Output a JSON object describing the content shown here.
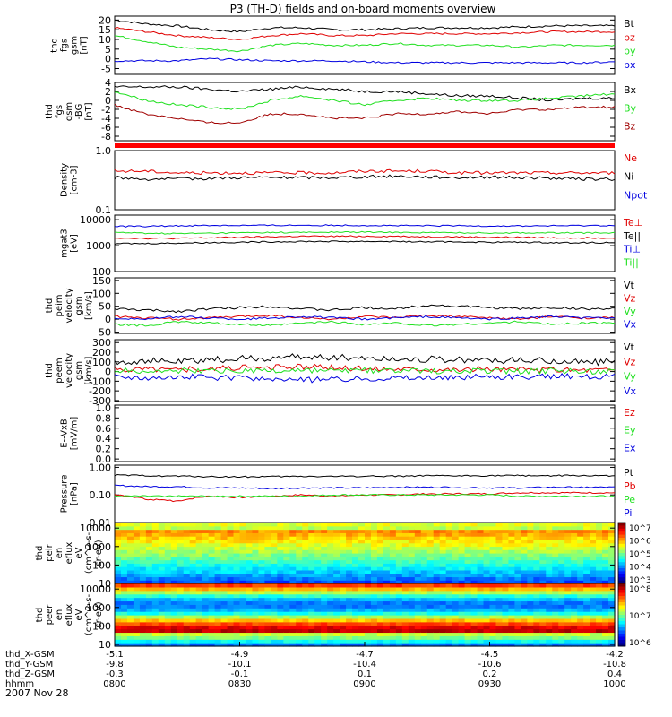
{
  "title": "P3 (TH-D) fields and on-board moments overview",
  "date_label": "2007 Nov 28",
  "colors": {
    "black": "#000000",
    "red": "#e00000",
    "green": "#20e020",
    "blue": "#0000e0",
    "darkred": "#a00000"
  },
  "chart_data": [
    {
      "type": "line",
      "ylabel": [
        "thd",
        "fgs",
        "gsm",
        "[nT]"
      ],
      "ylim": [
        -8,
        22
      ],
      "ticks": [
        "20",
        "15",
        "10",
        "5",
        "0",
        "-5"
      ],
      "tick_values": [
        20,
        15,
        10,
        5,
        0,
        -5
      ],
      "series": [
        {
          "name": "Bt",
          "color": "black",
          "values": [
            20,
            18,
            17,
            15,
            14,
            16,
            16,
            15,
            15,
            15.5,
            16,
            16,
            16,
            16.5,
            17,
            17,
            17
          ]
        },
        {
          "name": "bz",
          "color": "red",
          "values": [
            16,
            14,
            12,
            11,
            10,
            12,
            13,
            12,
            12,
            13,
            13,
            13,
            13,
            13.5,
            14,
            14,
            14
          ]
        },
        {
          "name": "by",
          "color": "green",
          "values": [
            12,
            9,
            6,
            5,
            4,
            7,
            8,
            7,
            7,
            8,
            7,
            7,
            7,
            6,
            7,
            7,
            7
          ]
        },
        {
          "name": "bx",
          "color": "blue",
          "values": [
            -1,
            -1,
            -1,
            0,
            -0.5,
            -1,
            -1,
            -1,
            -1.5,
            -2,
            -2,
            -2,
            -2,
            -2,
            -2,
            -2,
            -1.5
          ]
        }
      ]
    },
    {
      "type": "line",
      "ylabel": [
        "thd",
        "fgs",
        "gsm",
        "-BG",
        "[nT]"
      ],
      "ylim": [
        -9,
        4
      ],
      "ticks": [
        "4",
        "2",
        "0",
        "-2",
        "-4",
        "-6",
        "-8"
      ],
      "tick_values": [
        4,
        2,
        0,
        -2,
        -4,
        -6,
        -8
      ],
      "series": [
        {
          "name": "Bx",
          "color": "black",
          "values": [
            3,
            3,
            3,
            2.5,
            2,
            2.5,
            3,
            2.5,
            2,
            2,
            1.5,
            1,
            1,
            0.5,
            0,
            0.5,
            0.5
          ]
        },
        {
          "name": "By",
          "color": "green",
          "values": [
            2,
            0,
            -1,
            -1.5,
            -2,
            0,
            1,
            0,
            -1,
            0,
            0.5,
            0,
            0,
            0,
            0.5,
            1,
            1.5
          ]
        },
        {
          "name": "Bz",
          "color": "darkred",
          "values": [
            -1,
            -3,
            -4,
            -5,
            -5,
            -3,
            -3,
            -4,
            -4,
            -3,
            -3,
            -2.5,
            -3,
            -2,
            -2,
            -1.5,
            -1.5
          ]
        }
      ]
    },
    {
      "type": "line",
      "ylabel": [
        "Density",
        "[cm-3]"
      ],
      "scale": "log",
      "ylim": [
        0.1,
        1.0
      ],
      "ticks": [
        "1.0",
        "0.1"
      ],
      "tick_values": [
        1.0,
        0.1
      ],
      "series": [
        {
          "name": "Ne",
          "color": "red",
          "values": [
            0.45,
            0.45,
            0.42,
            0.42,
            0.42,
            0.42,
            0.42,
            0.42,
            0.45,
            0.45,
            0.45,
            0.42,
            0.42,
            0.42,
            0.42,
            0.42,
            0.42
          ]
        },
        {
          "name": "Ni",
          "color": "black",
          "values": [
            0.35,
            0.33,
            0.33,
            0.34,
            0.35,
            0.35,
            0.35,
            0.35,
            0.36,
            0.37,
            0.36,
            0.35,
            0.36,
            0.35,
            0.34,
            0.33,
            0.33
          ]
        },
        {
          "name": "Npot",
          "color": "blue",
          "values": []
        }
      ]
    },
    {
      "type": "line",
      "ylabel": [
        "mgat3",
        "[eV]"
      ],
      "scale": "log",
      "ylim": [
        100,
        15000
      ],
      "ticks": [
        "10000",
        "1000",
        "100"
      ],
      "tick_values": [
        10000,
        1000,
        100
      ],
      "series": [
        {
          "name": "Te⊥",
          "color": "red",
          "values": [
            2000,
            1900,
            1900,
            2000,
            2100,
            2200,
            2300,
            2300,
            2300,
            2300,
            2200,
            2200,
            2100,
            2100,
            2000,
            2000,
            2000
          ]
        },
        {
          "name": "Te||",
          "color": "black",
          "values": [
            1200,
            1200,
            1250,
            1300,
            1350,
            1400,
            1450,
            1450,
            1450,
            1450,
            1400,
            1400,
            1350,
            1350,
            1300,
            1300,
            1300
          ]
        },
        {
          "name": "Ti⊥",
          "color": "blue",
          "values": [
            5500,
            5600,
            5800,
            6000,
            6000,
            6000,
            6100,
            6100,
            6000,
            5900,
            5800,
            5800,
            5700,
            5700,
            5800,
            5900,
            6000
          ]
        },
        {
          "name": "Ti||",
          "color": "green",
          "values": [
            3200,
            3000,
            2900,
            3000,
            3100,
            3200,
            3200,
            3300,
            3300,
            3200,
            3200,
            3100,
            3100,
            3100,
            3100,
            3100,
            3100
          ]
        }
      ]
    },
    {
      "type": "line",
      "ylabel": [
        "thd",
        "peim",
        "velocity",
        "gsm",
        "[km/s]"
      ],
      "ylim": [
        -55,
        160
      ],
      "ticks": [
        "150",
        "100",
        "50",
        "0",
        "-50"
      ],
      "tick_values": [
        150,
        100,
        50,
        0,
        -50
      ],
      "series": [
        {
          "name": "Vt",
          "color": "black",
          "values": [
            40,
            35,
            30,
            40,
            45,
            50,
            40,
            35,
            45,
            40,
            55,
            50,
            45,
            40,
            45,
            40,
            40
          ]
        },
        {
          "name": "Vz",
          "color": "red",
          "values": [
            10,
            5,
            0,
            5,
            10,
            15,
            5,
            0,
            10,
            5,
            15,
            10,
            5,
            0,
            10,
            5,
            5
          ]
        },
        {
          "name": "Vy",
          "color": "green",
          "values": [
            -20,
            -25,
            -10,
            -15,
            -20,
            -25,
            -15,
            -10,
            -20,
            -15,
            -25,
            -20,
            -15,
            -10,
            -20,
            -15,
            -15
          ]
        },
        {
          "name": "Vx",
          "color": "blue",
          "values": [
            5,
            0,
            10,
            5,
            0,
            5,
            10,
            5,
            0,
            5,
            10,
            5,
            0,
            5,
            10,
            5,
            5
          ]
        }
      ]
    },
    {
      "type": "line",
      "ylabel": [
        "thd",
        "peem",
        "velocity",
        "gsm",
        "[km/s]"
      ],
      "ylim": [
        -310,
        330
      ],
      "ticks": [
        "300",
        "200",
        "100",
        "0",
        "-100",
        "-200",
        "-300"
      ],
      "tick_values": [
        300,
        200,
        100,
        0,
        -100,
        -200,
        -300
      ],
      "series": [
        {
          "name": "Vt",
          "color": "black",
          "values": [
            100,
            110,
            100,
            120,
            130,
            140,
            150,
            150,
            140,
            130,
            130,
            120,
            120,
            110,
            110,
            100,
            100
          ]
        },
        {
          "name": "Vz",
          "color": "red",
          "values": [
            20,
            30,
            20,
            30,
            40,
            40,
            50,
            40,
            30,
            30,
            30,
            20,
            30,
            20,
            20,
            20,
            20
          ]
        },
        {
          "name": "Vy",
          "color": "green",
          "values": [
            10,
            0,
            10,
            0,
            10,
            0,
            10,
            0,
            10,
            0,
            10,
            0,
            10,
            0,
            10,
            0,
            10
          ]
        },
        {
          "name": "Vx",
          "color": "blue",
          "values": [
            -50,
            -60,
            -50,
            -60,
            -70,
            -80,
            -90,
            -80,
            -70,
            -60,
            -70,
            -60,
            -50,
            -60,
            -50,
            -50,
            -50
          ]
        }
      ]
    },
    {
      "type": "line",
      "ylabel": [
        "E--VxB",
        "[mV/m]"
      ],
      "ylim": [
        -0.05,
        1.05
      ],
      "ticks": [
        "1.0",
        "0.8",
        "0.6",
        "0.4",
        "0.2",
        "0.0"
      ],
      "tick_values": [
        1.0,
        0.8,
        0.6,
        0.4,
        0.2,
        0.0
      ],
      "series": [
        {
          "name": "Ez",
          "color": "red",
          "values": []
        },
        {
          "name": "Ey",
          "color": "green",
          "values": []
        },
        {
          "name": "Ex",
          "color": "blue",
          "values": []
        }
      ]
    },
    {
      "type": "line",
      "ylabel": [
        "Pressure",
        "[nPa]"
      ],
      "scale": "log",
      "ylim": [
        0.01,
        1.2
      ],
      "ticks": [
        "1.00",
        "0.10",
        "0.01"
      ],
      "tick_values": [
        1.0,
        0.1,
        0.01
      ],
      "series": [
        {
          "name": "Pt",
          "color": "black",
          "values": [
            0.52,
            0.5,
            0.48,
            0.46,
            0.45,
            0.46,
            0.47,
            0.47,
            0.48,
            0.48,
            0.49,
            0.49,
            0.5,
            0.5,
            0.5,
            0.5,
            0.5
          ]
        },
        {
          "name": "Pb",
          "color": "red",
          "values": [
            0.1,
            0.07,
            0.06,
            0.09,
            0.08,
            0.09,
            0.1,
            0.09,
            0.1,
            0.1,
            0.11,
            0.11,
            0.11,
            0.12,
            0.12,
            0.12,
            0.12
          ]
        },
        {
          "name": "Pe",
          "color": "green",
          "values": [
            0.09,
            0.09,
            0.09,
            0.09,
            0.09,
            0.09,
            0.09,
            0.1,
            0.1,
            0.1,
            0.1,
            0.1,
            0.1,
            0.09,
            0.09,
            0.09,
            0.09
          ]
        },
        {
          "name": "Pi",
          "color": "blue",
          "values": [
            0.22,
            0.2,
            0.2,
            0.18,
            0.18,
            0.17,
            0.18,
            0.18,
            0.18,
            0.19,
            0.19,
            0.19,
            0.18,
            0.18,
            0.19,
            0.19,
            0.19
          ]
        }
      ]
    },
    {
      "type": "heatmap",
      "ylabel": [
        "thd",
        "peir",
        "en",
        "eflux",
        "eV",
        "(cm^2-s-",
        "sr-eV)"
      ],
      "scale": "log",
      "ylim": [
        10,
        20000
      ],
      "ticks": [
        "10000",
        "1000",
        "100",
        "10"
      ],
      "tick_values": [
        10000,
        1000,
        100,
        10
      ],
      "colorbar_ticks": [
        "10^7",
        "10^6",
        "10^5",
        "10^4",
        "10^3"
      ]
    },
    {
      "type": "heatmap",
      "ylabel": [
        "thd",
        "peer",
        "en",
        "eflux",
        "eV",
        "(cm^2-s-",
        "sr-eV)"
      ],
      "scale": "log",
      "ylim": [
        8,
        20000
      ],
      "ticks": [
        "10000",
        "1000",
        "100",
        "10"
      ],
      "tick_values": [
        10000,
        1000,
        100,
        10
      ],
      "colorbar_ticks": [
        "10^8",
        "10^7",
        "10^6"
      ]
    }
  ],
  "x_axis": {
    "row_labels": [
      "thd_X-GSM",
      "thd_Y-GSM",
      "thd_Z-GSM",
      "hhmm"
    ],
    "ticks": [
      {
        "x": "-5.1",
        "y": "-9.8",
        "z": "-0.3",
        "hhmm": "0800"
      },
      {
        "x": "-4.9",
        "y": "-10.1",
        "z": "-0.1",
        "hhmm": "0830"
      },
      {
        "x": "-4.7",
        "y": "-10.4",
        "z": "0.1",
        "hhmm": "0900"
      },
      {
        "x": "-4.5",
        "y": "-10.6",
        "z": "0.2",
        "hhmm": "0930"
      },
      {
        "x": "-4.2",
        "y": "-10.8",
        "z": "0.4",
        "hhmm": "1000"
      }
    ]
  }
}
